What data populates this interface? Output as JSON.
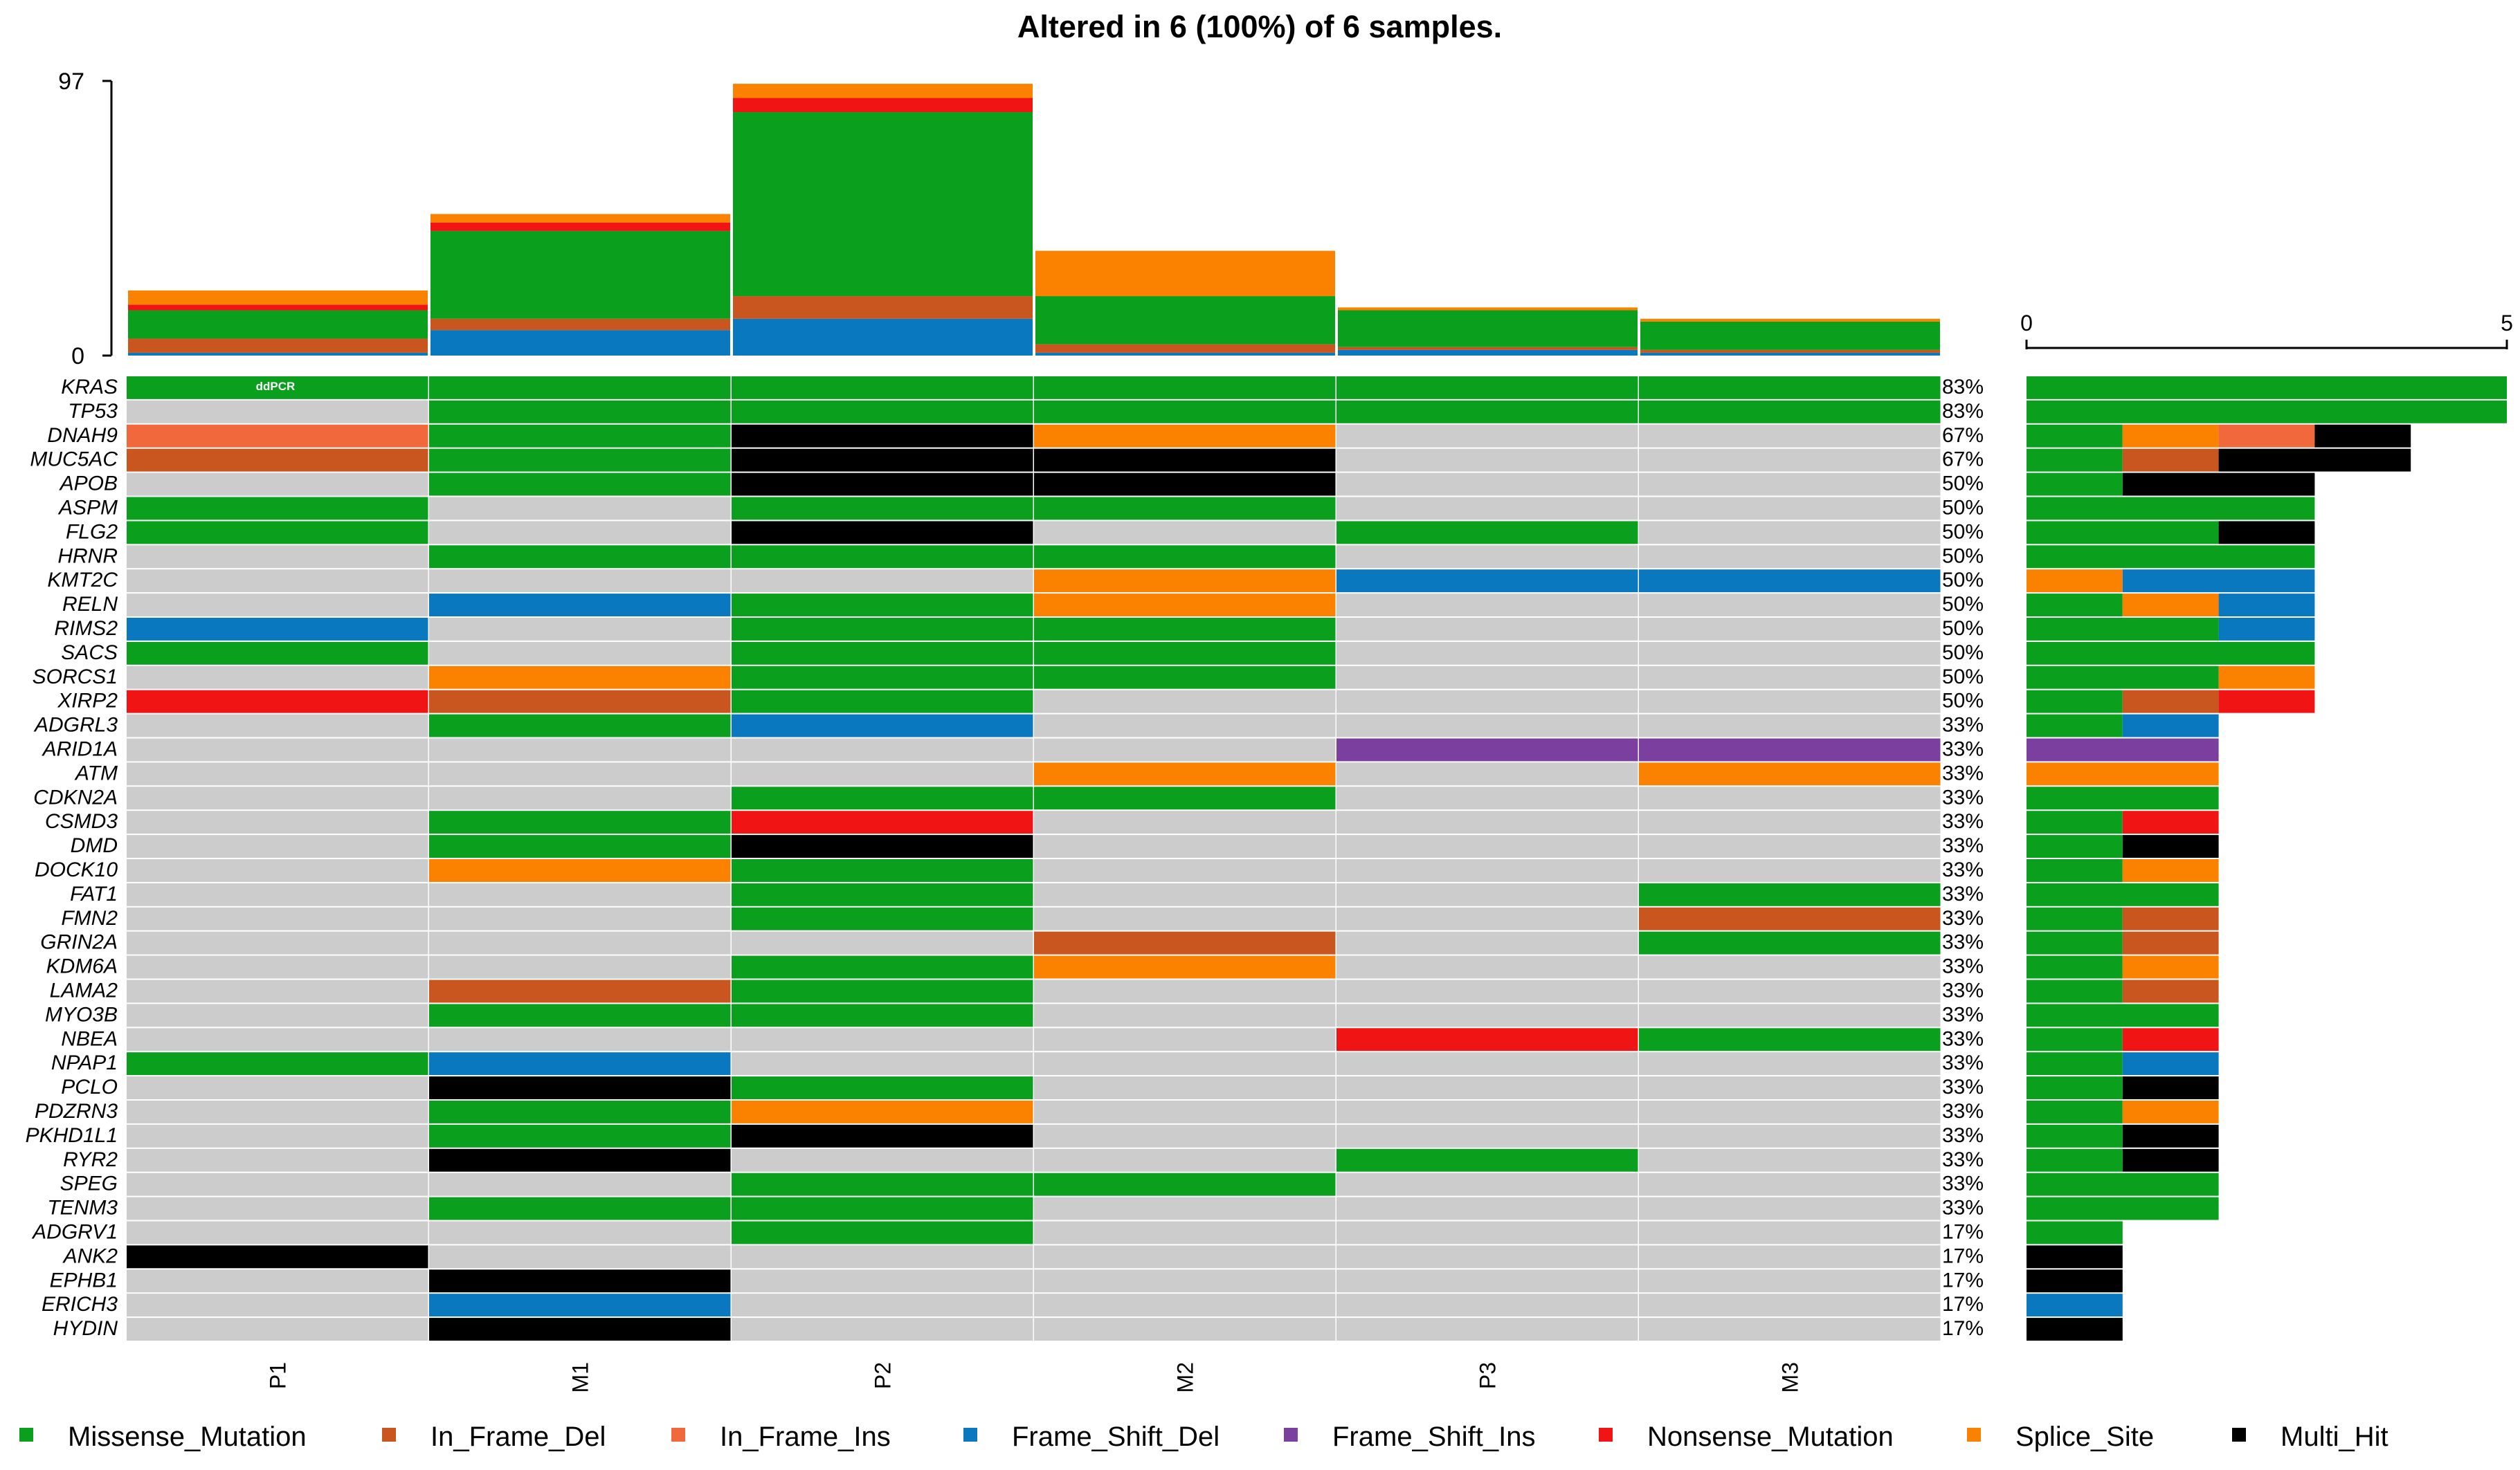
{
  "chart_data": {
    "type": "oncoplot",
    "title": "Altered in 6 (100%) of 6 samples.",
    "samples": [
      "P1",
      "M1",
      "P2",
      "M2",
      "P3",
      "M3"
    ],
    "tmb_axis": {
      "min_label": "0",
      "max_label": "97",
      "min": 0,
      "max": 97
    },
    "tmb": [
      {
        "sample": "P1",
        "counts": {
          "Frame_Shift_Del": 1,
          "In_Frame_Del": 5,
          "Missense_Mutation": 10,
          "Nonsense_Mutation": 2,
          "Splice_Site": 5
        }
      },
      {
        "sample": "M1",
        "counts": {
          "Frame_Shift_Del": 9,
          "In_Frame_Del": 4,
          "Missense_Mutation": 31,
          "Nonsense_Mutation": 3,
          "Splice_Site": 3
        }
      },
      {
        "sample": "P2",
        "counts": {
          "Frame_Shift_Del": 13,
          "In_Frame_Del": 8,
          "Missense_Mutation": 65,
          "Nonsense_Mutation": 5,
          "Splice_Site": 5
        }
      },
      {
        "sample": "M2",
        "counts": {
          "Frame_Shift_Del": 1,
          "In_Frame_Del": 3,
          "Missense_Mutation": 17,
          "Splice_Site": 16
        }
      },
      {
        "sample": "P3",
        "counts": {
          "Frame_Shift_Del": 2,
          "In_Frame_Del": 1,
          "Missense_Mutation": 13,
          "Splice_Site": 1
        }
      },
      {
        "sample": "M3",
        "counts": {
          "Frame_Shift_Del": 1,
          "In_Frame_Del": 1,
          "Missense_Mutation": 10,
          "Splice_Site": 1
        }
      }
    ],
    "side_axis": {
      "min_label": "0",
      "max_label": "5",
      "min": 0,
      "max": 5
    },
    "genes": [
      {
        "name": "KRAS",
        "pct": "83%",
        "cells": [
          "Missense_Mutation",
          "Missense_Mutation",
          "Missense_Mutation",
          "Missense_Mutation",
          "Missense_Mutation",
          "Missense_Mutation"
        ],
        "side": [
          [
            "Missense_Mutation",
            5
          ]
        ]
      },
      {
        "name": "TP53",
        "pct": "83%",
        "cells": [
          "",
          "Missense_Mutation",
          "Missense_Mutation",
          "Missense_Mutation",
          "Missense_Mutation",
          "Missense_Mutation"
        ],
        "side": [
          [
            "Missense_Mutation",
            5
          ]
        ]
      },
      {
        "name": "DNAH9",
        "pct": "67%",
        "cells": [
          "In_Frame_Ins",
          "Missense_Mutation",
          "Multi_Hit",
          "Splice_Site",
          "",
          ""
        ],
        "side": [
          [
            "Missense_Mutation",
            1
          ],
          [
            "Splice_Site",
            1
          ],
          [
            "In_Frame_Ins",
            1
          ],
          [
            "Multi_Hit",
            1
          ]
        ]
      },
      {
        "name": "MUC5AC",
        "pct": "67%",
        "cells": [
          "In_Frame_Del",
          "Missense_Mutation",
          "Multi_Hit",
          "Multi_Hit",
          "",
          ""
        ],
        "side": [
          [
            "Missense_Mutation",
            1
          ],
          [
            "In_Frame_Del",
            1
          ],
          [
            "Multi_Hit",
            2
          ]
        ]
      },
      {
        "name": "APOB",
        "pct": "50%",
        "cells": [
          "",
          "Missense_Mutation",
          "Multi_Hit",
          "Multi_Hit",
          "",
          ""
        ],
        "side": [
          [
            "Missense_Mutation",
            1
          ],
          [
            "Multi_Hit",
            2
          ]
        ]
      },
      {
        "name": "ASPM",
        "pct": "50%",
        "cells": [
          "Missense_Mutation",
          "",
          "Missense_Mutation",
          "Missense_Mutation",
          "",
          ""
        ],
        "side": [
          [
            "Missense_Mutation",
            3
          ]
        ]
      },
      {
        "name": "FLG2",
        "pct": "50%",
        "cells": [
          "Missense_Mutation",
          "",
          "Multi_Hit",
          "",
          "Missense_Mutation",
          ""
        ],
        "side": [
          [
            "Missense_Mutation",
            2
          ],
          [
            "Multi_Hit",
            1
          ]
        ]
      },
      {
        "name": "HRNR",
        "pct": "50%",
        "cells": [
          "",
          "Missense_Mutation",
          "Missense_Mutation",
          "Missense_Mutation",
          "",
          ""
        ],
        "side": [
          [
            "Missense_Mutation",
            3
          ]
        ]
      },
      {
        "name": "KMT2C",
        "pct": "50%",
        "cells": [
          "",
          "",
          "",
          "Splice_Site",
          "Frame_Shift_Del",
          "Frame_Shift_Del"
        ],
        "side": [
          [
            "Splice_Site",
            1
          ],
          [
            "Frame_Shift_Del",
            2
          ]
        ]
      },
      {
        "name": "RELN",
        "pct": "50%",
        "cells": [
          "",
          "Frame_Shift_Del",
          "Missense_Mutation",
          "Splice_Site",
          "",
          ""
        ],
        "side": [
          [
            "Missense_Mutation",
            1
          ],
          [
            "Splice_Site",
            1
          ],
          [
            "Frame_Shift_Del",
            1
          ]
        ]
      },
      {
        "name": "RIMS2",
        "pct": "50%",
        "cells": [
          "Frame_Shift_Del",
          "",
          "Missense_Mutation",
          "Missense_Mutation",
          "",
          ""
        ],
        "side": [
          [
            "Missense_Mutation",
            2
          ],
          [
            "Frame_Shift_Del",
            1
          ]
        ]
      },
      {
        "name": "SACS",
        "pct": "50%",
        "cells": [
          "Missense_Mutation",
          "",
          "Missense_Mutation",
          "Missense_Mutation",
          "",
          ""
        ],
        "side": [
          [
            "Missense_Mutation",
            3
          ]
        ]
      },
      {
        "name": "SORCS1",
        "pct": "50%",
        "cells": [
          "",
          "Splice_Site",
          "Missense_Mutation",
          "Missense_Mutation",
          "",
          ""
        ],
        "side": [
          [
            "Missense_Mutation",
            2
          ],
          [
            "Splice_Site",
            1
          ]
        ]
      },
      {
        "name": "XIRP2",
        "pct": "50%",
        "cells": [
          "Nonsense_Mutation",
          "In_Frame_Del",
          "Missense_Mutation",
          "",
          "",
          ""
        ],
        "side": [
          [
            "Missense_Mutation",
            1
          ],
          [
            "In_Frame_Del",
            1
          ],
          [
            "Nonsense_Mutation",
            1
          ]
        ]
      },
      {
        "name": "ADGRL3",
        "pct": "33%",
        "cells": [
          "",
          "Missense_Mutation",
          "Frame_Shift_Del",
          "",
          "",
          ""
        ],
        "side": [
          [
            "Missense_Mutation",
            1
          ],
          [
            "Frame_Shift_Del",
            1
          ]
        ]
      },
      {
        "name": "ARID1A",
        "pct": "33%",
        "cells": [
          "",
          "",
          "",
          "",
          "Frame_Shift_Ins",
          "Frame_Shift_Ins"
        ],
        "side": [
          [
            "Frame_Shift_Ins",
            2
          ]
        ]
      },
      {
        "name": "ATM",
        "pct": "33%",
        "cells": [
          "",
          "",
          "",
          "Splice_Site",
          "",
          "Splice_Site"
        ],
        "side": [
          [
            "Splice_Site",
            2
          ]
        ]
      },
      {
        "name": "CDKN2A",
        "pct": "33%",
        "cells": [
          "",
          "",
          "Missense_Mutation",
          "Missense_Mutation",
          "",
          ""
        ],
        "side": [
          [
            "Missense_Mutation",
            2
          ]
        ]
      },
      {
        "name": "CSMD3",
        "pct": "33%",
        "cells": [
          "",
          "Missense_Mutation",
          "Nonsense_Mutation",
          "",
          "",
          ""
        ],
        "side": [
          [
            "Missense_Mutation",
            1
          ],
          [
            "Nonsense_Mutation",
            1
          ]
        ]
      },
      {
        "name": "DMD",
        "pct": "33%",
        "cells": [
          "",
          "Missense_Mutation",
          "Multi_Hit",
          "",
          "",
          ""
        ],
        "side": [
          [
            "Missense_Mutation",
            1
          ],
          [
            "Multi_Hit",
            1
          ]
        ]
      },
      {
        "name": "DOCK10",
        "pct": "33%",
        "cells": [
          "",
          "Splice_Site",
          "Missense_Mutation",
          "",
          "",
          ""
        ],
        "side": [
          [
            "Missense_Mutation",
            1
          ],
          [
            "Splice_Site",
            1
          ]
        ]
      },
      {
        "name": "FAT1",
        "pct": "33%",
        "cells": [
          "",
          "",
          "Missense_Mutation",
          "",
          "",
          "Missense_Mutation"
        ],
        "side": [
          [
            "Missense_Mutation",
            2
          ]
        ]
      },
      {
        "name": "FMN2",
        "pct": "33%",
        "cells": [
          "",
          "",
          "Missense_Mutation",
          "",
          "",
          "In_Frame_Del"
        ],
        "side": [
          [
            "Missense_Mutation",
            1
          ],
          [
            "In_Frame_Del",
            1
          ]
        ]
      },
      {
        "name": "GRIN2A",
        "pct": "33%",
        "cells": [
          "",
          "",
          "",
          "In_Frame_Del",
          "",
          "Missense_Mutation"
        ],
        "side": [
          [
            "Missense_Mutation",
            1
          ],
          [
            "In_Frame_Del",
            1
          ]
        ]
      },
      {
        "name": "KDM6A",
        "pct": "33%",
        "cells": [
          "",
          "",
          "Missense_Mutation",
          "Splice_Site",
          "",
          ""
        ],
        "side": [
          [
            "Missense_Mutation",
            1
          ],
          [
            "Splice_Site",
            1
          ]
        ]
      },
      {
        "name": "LAMA2",
        "pct": "33%",
        "cells": [
          "",
          "In_Frame_Del",
          "Missense_Mutation",
          "",
          "",
          ""
        ],
        "side": [
          [
            "Missense_Mutation",
            1
          ],
          [
            "In_Frame_Del",
            1
          ]
        ]
      },
      {
        "name": "MYO3B",
        "pct": "33%",
        "cells": [
          "",
          "Missense_Mutation",
          "Missense_Mutation",
          "",
          "",
          ""
        ],
        "side": [
          [
            "Missense_Mutation",
            2
          ]
        ]
      },
      {
        "name": "NBEA",
        "pct": "33%",
        "cells": [
          "",
          "",
          "",
          "",
          "Nonsense_Mutation",
          "Missense_Mutation"
        ],
        "side": [
          [
            "Missense_Mutation",
            1
          ],
          [
            "Nonsense_Mutation",
            1
          ]
        ]
      },
      {
        "name": "NPAP1",
        "pct": "33%",
        "cells": [
          "Missense_Mutation",
          "Frame_Shift_Del",
          "",
          "",
          "",
          ""
        ],
        "side": [
          [
            "Missense_Mutation",
            1
          ],
          [
            "Frame_Shift_Del",
            1
          ]
        ]
      },
      {
        "name": "PCLO",
        "pct": "33%",
        "cells": [
          "",
          "Multi_Hit",
          "Missense_Mutation",
          "",
          "",
          ""
        ],
        "side": [
          [
            "Missense_Mutation",
            1
          ],
          [
            "Multi_Hit",
            1
          ]
        ]
      },
      {
        "name": "PDZRN3",
        "pct": "33%",
        "cells": [
          "",
          "Missense_Mutation",
          "Splice_Site",
          "",
          "",
          ""
        ],
        "side": [
          [
            "Missense_Mutation",
            1
          ],
          [
            "Splice_Site",
            1
          ]
        ]
      },
      {
        "name": "PKHD1L1",
        "pct": "33%",
        "cells": [
          "",
          "Missense_Mutation",
          "Multi_Hit",
          "",
          "",
          ""
        ],
        "side": [
          [
            "Missense_Mutation",
            1
          ],
          [
            "Multi_Hit",
            1
          ]
        ]
      },
      {
        "name": "RYR2",
        "pct": "33%",
        "cells": [
          "",
          "Multi_Hit",
          "",
          "",
          "Missense_Mutation",
          ""
        ],
        "side": [
          [
            "Missense_Mutation",
            1
          ],
          [
            "Multi_Hit",
            1
          ]
        ]
      },
      {
        "name": "SPEG",
        "pct": "33%",
        "cells": [
          "",
          "",
          "Missense_Mutation",
          "Missense_Mutation",
          "",
          ""
        ],
        "side": [
          [
            "Missense_Mutation",
            2
          ]
        ]
      },
      {
        "name": "TENM3",
        "pct": "33%",
        "cells": [
          "",
          "Missense_Mutation",
          "Missense_Mutation",
          "",
          "",
          ""
        ],
        "side": [
          [
            "Missense_Mutation",
            2
          ]
        ]
      },
      {
        "name": "ADGRV1",
        "pct": "17%",
        "cells": [
          "",
          "",
          "Missense_Mutation",
          "",
          "",
          ""
        ],
        "side": [
          [
            "Missense_Mutation",
            1
          ]
        ]
      },
      {
        "name": "ANK2",
        "pct": "17%",
        "cells": [
          "Multi_Hit",
          "",
          "",
          "",
          "",
          ""
        ],
        "side": [
          [
            "Multi_Hit",
            1
          ]
        ]
      },
      {
        "name": "EPHB1",
        "pct": "17%",
        "cells": [
          "",
          "Multi_Hit",
          "",
          "",
          "",
          ""
        ],
        "side": [
          [
            "Multi_Hit",
            1
          ]
        ]
      },
      {
        "name": "ERICH3",
        "pct": "17%",
        "cells": [
          "",
          "Frame_Shift_Del",
          "",
          "",
          "",
          ""
        ],
        "side": [
          [
            "Frame_Shift_Del",
            1
          ]
        ]
      },
      {
        "name": "HYDIN",
        "pct": "17%",
        "cells": [
          "",
          "Multi_Hit",
          "",
          "",
          "",
          ""
        ],
        "side": [
          [
            "Multi_Hit",
            1
          ]
        ]
      }
    ],
    "annotation": {
      "gene": "KRAS",
      "sample": "P1",
      "text": "ddPCR"
    },
    "legend": [
      {
        "key": "Missense_Mutation",
        "label": "Missense_Mutation"
      },
      {
        "key": "In_Frame_Del",
        "label": "In_Frame_Del"
      },
      {
        "key": "In_Frame_Ins",
        "label": "In_Frame_Ins"
      },
      {
        "key": "Frame_Shift_Del",
        "label": "Frame_Shift_Del"
      },
      {
        "key": "Frame_Shift_Ins",
        "label": "Frame_Shift_Ins"
      },
      {
        "key": "Nonsense_Mutation",
        "label": "Nonsense_Mutation"
      },
      {
        "key": "Splice_Site",
        "label": "Splice_Site"
      },
      {
        "key": "Multi_Hit",
        "label": "Multi_Hit"
      }
    ],
    "colors": {
      "Missense_Mutation": "#0aa01e",
      "In_Frame_Del": "#c8561e",
      "In_Frame_Ins": "#f0683c",
      "Frame_Shift_Del": "#0a78be",
      "Frame_Shift_Ins": "#7b3fa0",
      "Nonsense_Mutation": "#f01414",
      "Splice_Site": "#fa8200",
      "Multi_Hit": "#000000",
      "none": "#cccccc"
    }
  }
}
